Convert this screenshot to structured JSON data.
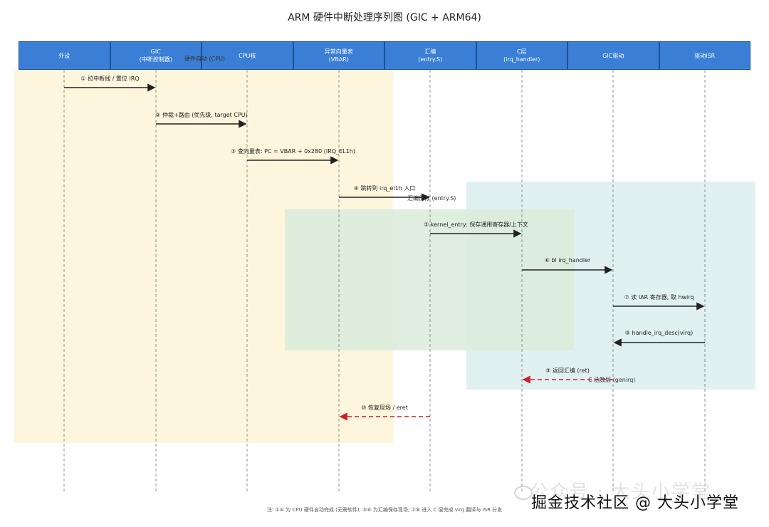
{
  "title": "ARM 硬件中断处理序列图 (GIC + ARM64)",
  "regions": [
    {
      "label": "硬件自动 (CPU)",
      "color": "#fdf5dc"
    },
    {
      "label": "汇编保存 (entry.S)",
      "color": "#e2f0e4"
    },
    {
      "label": "C 函数层 (genirq)",
      "color": "#e0f1f1"
    }
  ],
  "participants": [
    {
      "line1": "外设",
      "line2": ""
    },
    {
      "line1": "GIC",
      "line2": "(中断控制器)"
    },
    {
      "line1": "CPU核",
      "line2": ""
    },
    {
      "line1": "异常向量表",
      "line2": "(VBAR)"
    },
    {
      "line1": "汇编",
      "line2": "(entry.S)"
    },
    {
      "line1": "C层",
      "line2": "(irq_handler)"
    },
    {
      "line1": "GIC驱动",
      "line2": ""
    },
    {
      "line1": "驱动ISR",
      "line2": ""
    }
  ],
  "messages": [
    {
      "label": "① 拉中断线 / 置位 IRQ",
      "from": 0,
      "to": 1,
      "type": "sync"
    },
    {
      "label": "② 仲裁+路由 (优先级, target CPU)",
      "from": 1,
      "to": 2,
      "type": "sync"
    },
    {
      "label": "③ 查向量表: PC = VBAR + 0x280 (IRQ_EL1h)",
      "from": 2,
      "to": 3,
      "type": "sync"
    },
    {
      "label": "④ 跳转到 irq_el1h 入口",
      "from": 3,
      "to": 4,
      "type": "sync"
    },
    {
      "label": "⑤ kernel_entry: 保存通用寄存器/上下文",
      "from": 4,
      "to": 5,
      "type": "sync"
    },
    {
      "label": "⑥ bl irq_handler",
      "from": 5,
      "to": 6,
      "type": "sync"
    },
    {
      "label": "⑦ 读 IAR 寄存器, 取 hwirq",
      "from": 6,
      "to": 7,
      "type": "sync"
    },
    {
      "label": "⑧ handle_irq_desc(virq)",
      "from": 7,
      "to": 6,
      "type": "sync"
    },
    {
      "label": "⑨ 返回汇编 (ret)",
      "from": 6,
      "to": 5,
      "type": "return"
    },
    {
      "label": "⑩ 恢复现场 / eret",
      "from": 4,
      "to": 3,
      "type": "return"
    }
  ],
  "footnote": "注: ①④ 为 CPU 硬件自动完成 (无需软件); ⑤⑥ 为汇编保存现场; ⑦⑧ 进入 C 层完成 virq 翻译与 ISR 分发",
  "watermark": {
    "line1": "公众号 · 大头小学堂",
    "line2": "掘金技术社区 @ 大头小学堂"
  },
  "colors": {
    "header": "#3a7fd5",
    "sync_arrow": "#222222",
    "return_arrow": "#cc1f2a",
    "lifeline": "#777777"
  }
}
